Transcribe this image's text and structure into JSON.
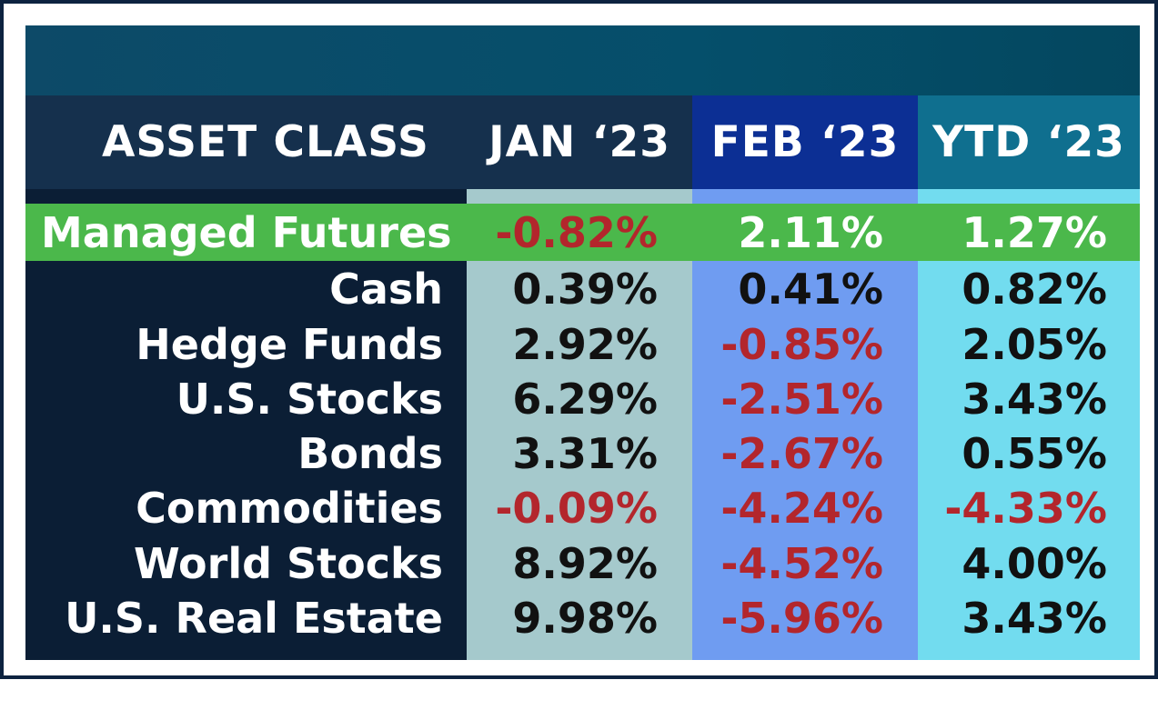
{
  "chart_data": {
    "type": "table",
    "title": "",
    "columns": [
      "ASSET CLASS",
      "JAN ‘23",
      "FEB ‘23",
      "YTD ‘23"
    ],
    "rows": [
      {
        "asset": "Managed Futures",
        "jan": "-0.82%",
        "feb": "2.11%",
        "ytd": "1.27%",
        "highlight": true
      },
      {
        "asset": "Cash",
        "jan": "0.39%",
        "feb": "0.41%",
        "ytd": "0.82%"
      },
      {
        "asset": "Hedge Funds",
        "jan": "2.92%",
        "feb": "-0.85%",
        "ytd": "2.05%"
      },
      {
        "asset": "U.S. Stocks",
        "jan": "6.29%",
        "feb": "-2.51%",
        "ytd": "3.43%"
      },
      {
        "asset": "Bonds",
        "jan": "3.31%",
        "feb": "-2.67%",
        "ytd": "0.55%"
      },
      {
        "asset": "Commodities",
        "jan": "-0.09%",
        "feb": "-4.24%",
        "ytd": "-4.33%"
      },
      {
        "asset": "World Stocks",
        "jan": "8.92%",
        "feb": "-4.52%",
        "ytd": "4.00%"
      },
      {
        "asset": "U.S. Real Estate",
        "jan": "9.98%",
        "feb": "-5.96%",
        "ytd": "3.43%"
      }
    ],
    "colors": {
      "header_band": "#054f6b",
      "asset_column": "#0b1e35",
      "asset_header": "#15304d",
      "jan_header": "#15304d",
      "jan_column": "#a5c9cc",
      "feb_header": "#0c2f94",
      "feb_column": "#6f9cf1",
      "ytd_header": "#0f6f8f",
      "ytd_column": "#72dcef",
      "highlight_row": "#4bb84b",
      "negative_text": "#b3262c",
      "positive_text": "#111111"
    }
  }
}
